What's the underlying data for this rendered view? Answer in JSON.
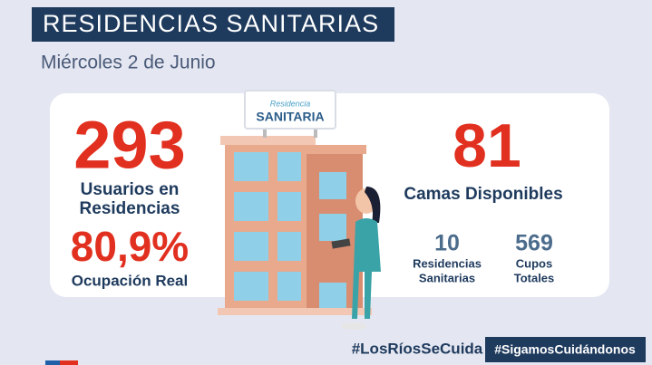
{
  "header": {
    "title": "RESIDENCIAS SANITARIAS",
    "date": "Miércoles 2 de Junio"
  },
  "sign": {
    "top": "Residencia",
    "bottom": "SANITARIA"
  },
  "left": {
    "users_value": "293",
    "users_label": [
      "Usuarios en",
      "Residencias"
    ],
    "occupancy_value": "80,9%",
    "occupancy_label": "Ocupación Real"
  },
  "right": {
    "beds_value": "81",
    "beds_label": "Camas Disponibles",
    "residences_value": "10",
    "residences_label": [
      "Residencias",
      "Sanitarias"
    ],
    "slots_value": "569",
    "slots_label": [
      "Cupos",
      "Totales"
    ]
  },
  "footer": {
    "hashtag_1": "#LosRíosSeCuida",
    "hashtag_2": "#SigamosCuidándonos"
  }
}
